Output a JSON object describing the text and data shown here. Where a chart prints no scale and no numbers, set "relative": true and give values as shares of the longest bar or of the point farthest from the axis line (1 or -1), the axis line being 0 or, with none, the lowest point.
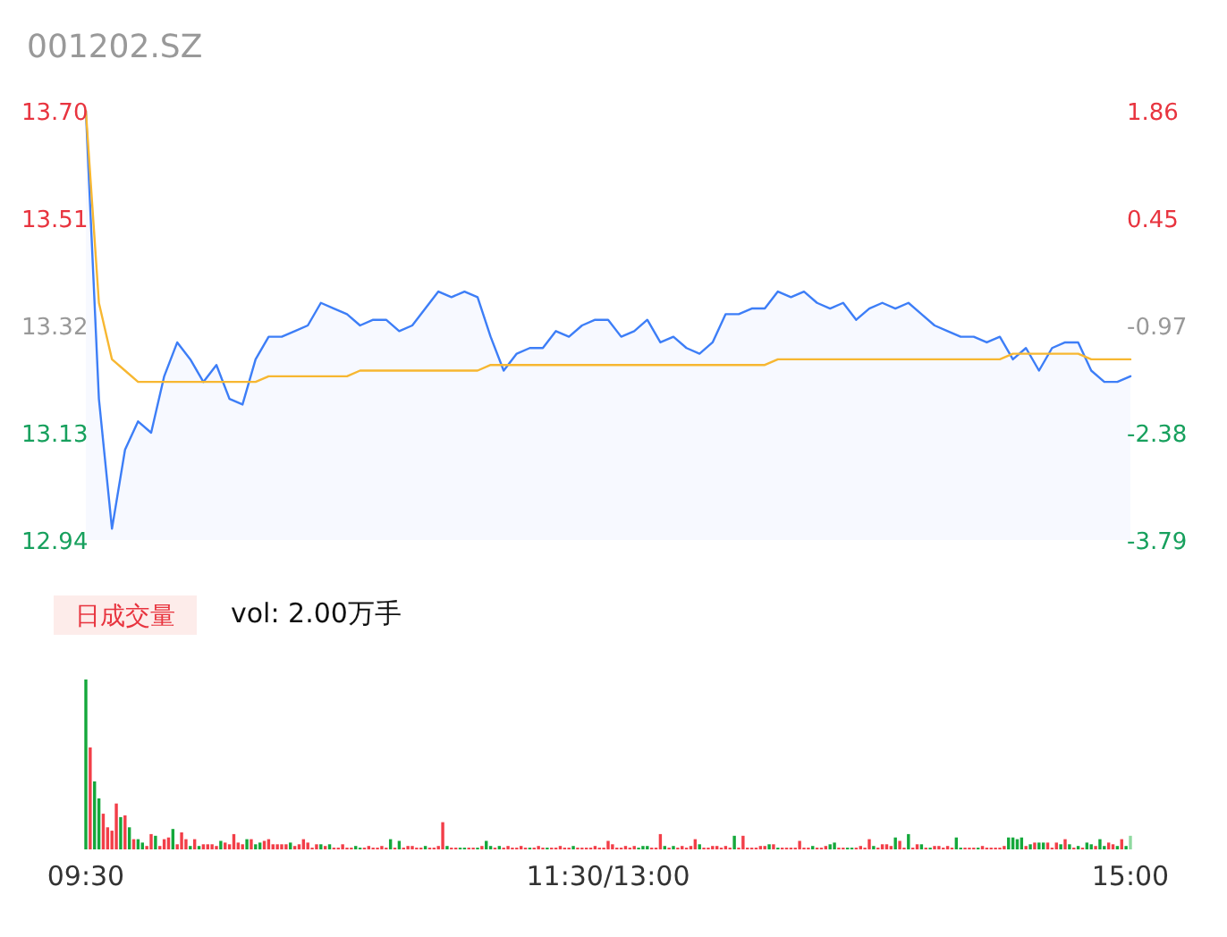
{
  "chart_data": [
    {
      "type": "line",
      "title": "001202.SZ",
      "categories": [
        null,
        null,
        null,
        null,
        null,
        null,
        null,
        null,
        null,
        null,
        null,
        null,
        null,
        null,
        null,
        null,
        null,
        null,
        null,
        null,
        null,
        null,
        null,
        null,
        null,
        null,
        null,
        null,
        null,
        null,
        null,
        null,
        null,
        null,
        null,
        null,
        null,
        null,
        null,
        null,
        null,
        null,
        null,
        null,
        null,
        null,
        null,
        null,
        null,
        null,
        null,
        null,
        null,
        null,
        null,
        null,
        null,
        null,
        null,
        null,
        null,
        null,
        null,
        null,
        null,
        null,
        null,
        null,
        null,
        null,
        null,
        null,
        null,
        null,
        null,
        null,
        null,
        null,
        null,
        null,
        null
      ],
      "ylim": [
        12.94,
        13.7
      ],
      "yticks": [
        12.94,
        13.13,
        13.32,
        13.51,
        {
          "value": 13.7,
          "label": "13.70"
        }
      ],
      "y2lim": [
        -3.79,
        1.86
      ],
      "y2ticks": [
        -3.79,
        -2.38,
        -0.97,
        0.45,
        1.86
      ],
      "tick_labels": "y",
      "line_style": "solid",
      "series": [
        {
          "type": "area",
          "color": "#3d7ef7",
          "values": [
            13.7,
            13.19,
            12.96,
            13.1,
            13.15,
            13.13,
            13.23,
            13.29,
            13.26,
            13.22,
            13.25,
            13.19,
            13.18,
            13.26,
            13.3,
            13.3,
            13.31,
            13.32,
            13.36,
            13.35,
            13.34,
            13.32,
            13.33,
            13.33,
            13.31,
            13.32,
            13.35,
            13.38,
            13.37,
            13.38,
            13.37,
            13.3,
            13.24,
            13.27,
            13.28,
            13.28,
            13.31,
            13.3,
            13.32,
            13.33,
            13.33,
            13.3,
            13.31,
            13.33,
            13.29,
            13.3,
            13.28,
            13.27,
            13.29,
            13.34,
            13.34,
            13.35,
            13.35,
            13.38,
            13.37,
            13.38,
            13.36,
            13.35,
            13.36,
            13.33,
            13.35,
            13.36,
            13.35,
            13.36,
            13.34,
            13.32,
            13.31,
            13.3,
            13.3,
            13.29,
            13.3,
            13.26,
            13.28,
            13.24,
            13.28,
            13.29,
            13.29,
            13.24,
            13.22,
            13.22,
            13.23
          ]
        },
        {
          "color": "#f7b731",
          "values": [
            13.7,
            13.36,
            13.26,
            13.24,
            13.22,
            13.22,
            13.22,
            13.22,
            13.22,
            13.22,
            13.22,
            13.22,
            13.22,
            13.22,
            13.23,
            13.23,
            13.23,
            13.23,
            13.23,
            13.23,
            13.23,
            13.24,
            13.24,
            13.24,
            13.24,
            13.24,
            13.24,
            13.24,
            13.24,
            13.24,
            13.24,
            13.25,
            13.25,
            13.25,
            13.25,
            13.25,
            13.25,
            13.25,
            13.25,
            13.25,
            13.25,
            13.25,
            13.25,
            13.25,
            13.25,
            13.25,
            13.25,
            13.25,
            13.25,
            13.25,
            13.25,
            13.25,
            13.25,
            13.26,
            13.26,
            13.26,
            13.26,
            13.26,
            13.26,
            13.26,
            13.26,
            13.26,
            13.26,
            13.26,
            13.26,
            13.26,
            13.26,
            13.26,
            13.26,
            13.26,
            13.26,
            13.27,
            13.27,
            13.27,
            13.27,
            13.27,
            13.27,
            13.26,
            13.26,
            13.26,
            13.26
          ]
        }
      ]
    },
    {
      "type": "bar",
      "relative": true,
      "annotations": [
        "日成交量",
        "vol: 2.00万手"
      ],
      "categories": [
        "09:30",
        null,
        null,
        null,
        null,
        null,
        null,
        null,
        null,
        null,
        null,
        null,
        null,
        null,
        null,
        null,
        null,
        null,
        null,
        null,
        null,
        null,
        null,
        null,
        null,
        null,
        null,
        null,
        null,
        null,
        null,
        null,
        null,
        null,
        null,
        null,
        null,
        null,
        null,
        null,
        null,
        null,
        null,
        null,
        null,
        null,
        null,
        null,
        null,
        null,
        null,
        null,
        null,
        null,
        null,
        null,
        null,
        null,
        null,
        null,
        null,
        null,
        null,
        null,
        null,
        null,
        null,
        null,
        null,
        null,
        null,
        null,
        null,
        null,
        null,
        null,
        null,
        null,
        null,
        null,
        null,
        null,
        null,
        null,
        null,
        null,
        null,
        null,
        null,
        null,
        null,
        null,
        null,
        null,
        null,
        null,
        null,
        null,
        null,
        null,
        null,
        null,
        null,
        null,
        null,
        null,
        null,
        null,
        null,
        null,
        null,
        null,
        null,
        null,
        null,
        null,
        null,
        null,
        null,
        null,
        "11:30/13:00",
        null,
        null,
        null,
        null,
        null,
        null,
        null,
        null,
        null,
        null,
        null,
        null,
        null,
        null,
        null,
        null,
        null,
        null,
        null,
        null,
        null,
        null,
        null,
        null,
        null,
        null,
        null,
        null,
        null,
        null,
        null,
        null,
        null,
        null,
        null,
        null,
        null,
        null,
        null,
        null,
        null,
        null,
        null,
        null,
        null,
        null,
        null,
        null,
        null,
        null,
        null,
        null,
        null,
        null,
        null,
        null,
        null,
        null,
        null,
        null,
        null,
        null,
        null,
        null,
        null,
        null,
        null,
        null,
        null,
        null,
        null,
        null,
        null,
        null,
        null,
        null,
        null,
        null,
        null,
        null,
        null,
        null,
        null,
        null,
        null,
        null,
        null,
        null,
        null,
        null,
        null,
        null,
        null,
        null,
        null,
        null,
        null,
        null,
        null,
        null,
        null,
        null,
        null,
        null,
        null,
        null,
        null,
        null,
        null,
        null,
        null,
        null,
        null,
        null,
        null,
        null,
        null,
        null,
        null,
        "15:00"
      ],
      "values": [
        1.0,
        0.6,
        0.4,
        0.3,
        0.21,
        0.13,
        0.11,
        0.27,
        0.19,
        0.2,
        0.13,
        0.06,
        0.06,
        0.04,
        0.02,
        0.09,
        0.08,
        0.02,
        0.06,
        0.07,
        0.12,
        0.03,
        0.1,
        0.06,
        0.02,
        0.06,
        0.02,
        0.03,
        0.03,
        0.03,
        0.02,
        0.05,
        0.04,
        0.03,
        0.09,
        0.04,
        0.03,
        0.06,
        0.06,
        0.03,
        0.04,
        0.05,
        0.06,
        0.03,
        0.03,
        0.03,
        0.03,
        0.04,
        0.02,
        0.03,
        0.06,
        0.04,
        0.01,
        0.03,
        0.03,
        0.02,
        0.03,
        0.01,
        0.01,
        0.03,
        0.01,
        0.01,
        0.02,
        0.01,
        0.01,
        0.02,
        0.01,
        0.01,
        0.02,
        0.01,
        0.06,
        0.01,
        0.05,
        0.01,
        0.02,
        0.02,
        0.01,
        0.01,
        0.02,
        0.01,
        0.01,
        0.02,
        0.16,
        0.02,
        0.01,
        0.01,
        0.01,
        0.01,
        0.01,
        0.01,
        0.01,
        0.02,
        0.05,
        0.02,
        0.01,
        0.02,
        0.01,
        0.02,
        0.01,
        0.01,
        0.02,
        0.01,
        0.01,
        0.01,
        0.02,
        0.01,
        0.01,
        0.01,
        0.01,
        0.02,
        0.01,
        0.01,
        0.02,
        0.01,
        0.01,
        0.01,
        0.01,
        0.02,
        0.01,
        0.01,
        0.05,
        0.03,
        0.01,
        0.01,
        0.02,
        0.01,
        0.02,
        0.01,
        0.02,
        0.02,
        0.01,
        0.01,
        0.09,
        0.02,
        0.01,
        0.02,
        0.01,
        0.02,
        0.01,
        0.02,
        0.06,
        0.03,
        0.01,
        0.01,
        0.02,
        0.02,
        0.01,
        0.02,
        0.01,
        0.08,
        0.01,
        0.08,
        0.01,
        0.01,
        0.01,
        0.02,
        0.02,
        0.03,
        0.03,
        0.01,
        0.01,
        0.01,
        0.01,
        0.01,
        0.05,
        0.01,
        0.01,
        0.02,
        0.01,
        0.01,
        0.02,
        0.03,
        0.04,
        0.01,
        0.01,
        0.01,
        0.01,
        0.01,
        0.02,
        0.01,
        0.06,
        0.02,
        0.01,
        0.03,
        0.03,
        0.02,
        0.07,
        0.05,
        0.01,
        0.09,
        0.01,
        0.03,
        0.03,
        0.01,
        0.01,
        0.02,
        0.02,
        0.01,
        0.02,
        0.01,
        0.07,
        0.01,
        0.01,
        0.01,
        0.01,
        0.01,
        0.02,
        0.01,
        0.01,
        0.01,
        0.01,
        0.02,
        0.07,
        0.07,
        0.06,
        0.07,
        0.02,
        0.03,
        0.04,
        0.04,
        0.04,
        0.04,
        0.01,
        0.04,
        0.03,
        0.06,
        0.03,
        0.01,
        0.02,
        0.01,
        0.04,
        0.03,
        0.02,
        0.06,
        0.02,
        0.04,
        0.03,
        0.02,
        0.06,
        0.02,
        0.08
      ],
      "colors": [
        "#14a83b",
        "#f23e48",
        "#14a83b",
        "#14a83b",
        "#f23e48",
        "#f23e48",
        "#f23e48",
        "#f23e48",
        "#14a83b",
        "#f23e48",
        "#14a83b",
        "#f23e48",
        "#14a83b",
        "#14a83b",
        "#f23e48",
        "#f23e48",
        "#14a83b",
        "#f23e48",
        "#f23e48",
        "#f23e48",
        "#14a83b",
        "#f23e48",
        "#f23e48",
        "#f23e48",
        "#14a83b",
        "#f23e48",
        "#14a83b",
        "#f23e48",
        "#f23e48",
        "#f23e48",
        "#f23e48",
        "#14a83b",
        "#f23e48",
        "#f23e48",
        "#f23e48",
        "#f23e48",
        "#f23e48",
        "#14a83b",
        "#f23e48",
        "#14a83b",
        "#14a83b",
        "#f23e48",
        "#f23e48",
        "#f23e48",
        "#f23e48",
        "#f23e48",
        "#f23e48",
        "#14a83b",
        "#f23e48",
        "#f23e48",
        "#f23e48",
        "#f23e48",
        "#f23e48",
        "#f23e48",
        "#14a83b",
        "#f23e48",
        "#14a83b",
        "#f23e48",
        "#f23e48",
        "#f23e48",
        "#f23e48",
        "#f23e48",
        "#14a83b",
        "#14a83b",
        "#f23e48",
        "#f23e48",
        "#f23e48",
        "#f23e48",
        "#f23e48",
        "#f23e48",
        "#14a83b",
        "#f23e48",
        "#14a83b",
        "#f23e48",
        "#f23e48",
        "#f23e48",
        "#f23e48",
        "#f23e48",
        "#14a83b",
        "#f23e48",
        "#f23e48",
        "#f23e48",
        "#f23e48",
        "#14a83b",
        "#f23e48",
        "#f23e48",
        "#14a83b",
        "#14a83b",
        "#f23e48",
        "#f23e48",
        "#14a83b",
        "#f23e48",
        "#14a83b",
        "#14a83b",
        "#f23e48",
        "#14a83b",
        "#f23e48",
        "#f23e48",
        "#f23e48",
        "#f23e48",
        "#f23e48",
        "#f23e48",
        "#14a83b",
        "#f23e48",
        "#f23e48",
        "#f23e48",
        "#14a83b",
        "#f23e48",
        "#f23e48",
        "#f23e48",
        "#f23e48",
        "#f23e48",
        "#14a83b",
        "#f23e48",
        "#f23e48",
        "#f23e48",
        "#f23e48",
        "#f23e48",
        "#f23e48",
        "#f23e48",
        "#f23e48",
        "#f23e48",
        "#f23e48",
        "#f23e48",
        "#f23e48",
        "#f23e48",
        "#f23e48",
        "#14a83b",
        "#14a83b",
        "#14a83b",
        "#f23e48",
        "#f23e48",
        "#f23e48",
        "#14a83b",
        "#f23e48",
        "#14a83b",
        "#f23e48",
        "#f23e48",
        "#f23e48",
        "#f23e48",
        "#f23e48",
        "#14a83b",
        "#f23e48",
        "#f23e48",
        "#f23e48",
        "#f23e48",
        "#f23e48",
        "#f23e48",
        "#f23e48",
        "#14a83b",
        "#f23e48",
        "#f23e48",
        "#f23e48",
        "#f23e48",
        "#f23e48",
        "#f23e48",
        "#f23e48",
        "#14a83b",
        "#f23e48",
        "#14a83b",
        "#f23e48",
        "#f23e48",
        "#f23e48",
        "#f23e48",
        "#f23e48",
        "#f23e48",
        "#f23e48",
        "#14a83b",
        "#f23e48",
        "#f23e48",
        "#f23e48",
        "#14a83b",
        "#14a83b",
        "#f23e48",
        "#f23e48",
        "#14a83b",
        "#14a83b",
        "#f23e48",
        "#f23e48",
        "#f23e48",
        "#f23e48",
        "#14a83b",
        "#f23e48",
        "#f23e48",
        "#f23e48",
        "#f23e48",
        "#14a83b",
        "#f23e48",
        "#f23e48",
        "#14a83b",
        "#f23e48",
        "#f23e48",
        "#14a83b",
        "#f23e48",
        "#14a83b",
        "#f23e48",
        "#f23e48",
        "#f23e48",
        "#f23e48",
        "#f23e48",
        "#14a83b",
        "#14a83b",
        "#f23e48",
        "#f23e48",
        "#f23e48",
        "#14a83b",
        "#f23e48",
        "#f23e48",
        "#f23e48",
        "#f23e48",
        "#f23e48",
        "#f23e48",
        "#14a83b",
        "#14a83b",
        "#14a83b",
        "#14a83b",
        "#f23e48",
        "#14a83b",
        "#f23e48",
        "#14a83b",
        "#14a83b",
        "#f23e48",
        "#f23e48",
        "#f23e48",
        "#14a83b",
        "#f23e48",
        "#14a83b",
        "#f23e48",
        "#14a83b",
        "#f23e48",
        "#14a83b",
        "#14a83b",
        "#f23e48",
        "#14a83b",
        "#14a83b",
        "#f23e48",
        "#f23e48",
        "#14a83b",
        "#f23e48",
        "#14a83b",
        "#8fd9a0"
      ]
    }
  ]
}
